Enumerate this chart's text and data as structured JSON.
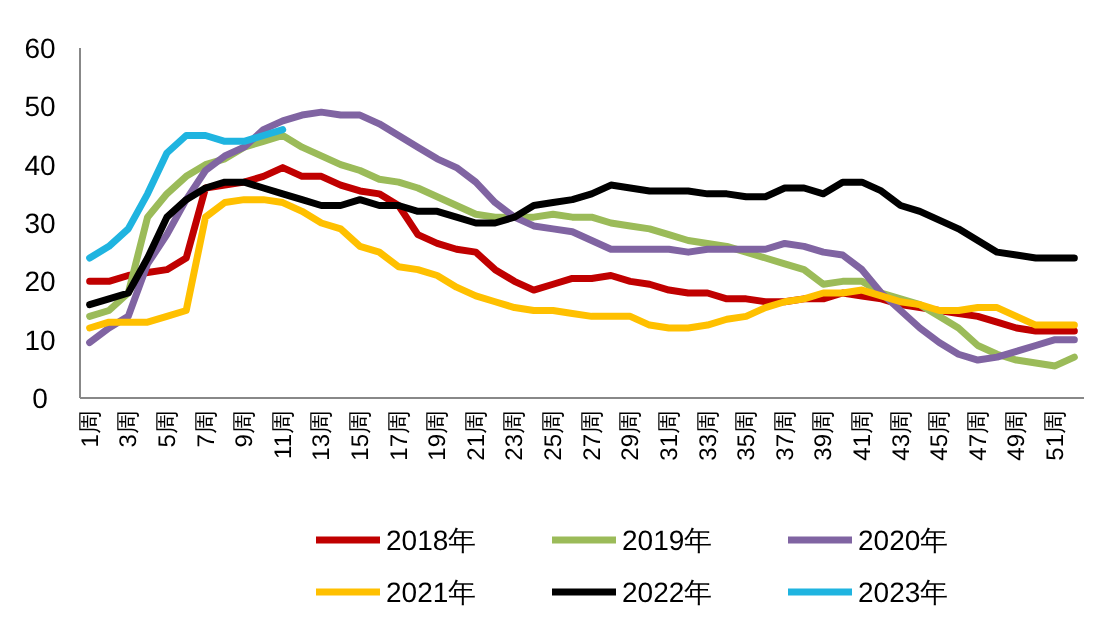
{
  "chart_data": {
    "type": "line",
    "categories": [
      "1周",
      null,
      "3周",
      null,
      "5周",
      null,
      "7周",
      null,
      "9周",
      null,
      "11周",
      null,
      "13周",
      null,
      "15周",
      null,
      "17周",
      null,
      "19周",
      null,
      "21周",
      null,
      "23周",
      null,
      "25周",
      null,
      "27周",
      null,
      "29周",
      null,
      "31周",
      null,
      "33周",
      null,
      "35周",
      null,
      "37周",
      null,
      "39周",
      null,
      "41周",
      null,
      "43周",
      null,
      "45周",
      null,
      "47周",
      null,
      "49周",
      null,
      "51周",
      null
    ],
    "series": [
      {
        "name": "2018年",
        "color": "#c00000",
        "values": [
          20,
          20,
          21,
          21.5,
          22,
          24,
          36,
          36.5,
          37,
          38,
          39.5,
          38,
          38,
          36.5,
          35.5,
          35,
          33,
          28,
          26.5,
          25.5,
          25,
          22,
          20,
          18.5,
          19.5,
          20.5,
          20.5,
          21,
          20,
          19.5,
          18.5,
          18,
          18,
          17,
          17,
          16.5,
          16.5,
          17,
          17,
          18,
          17.5,
          17,
          16,
          15.5,
          15,
          14.5,
          14,
          13,
          12,
          11.5,
          11.5,
          11.5
        ]
      },
      {
        "name": "2019年",
        "color": "#9bbb59",
        "values": [
          14,
          15,
          18,
          31,
          35,
          38,
          40,
          41,
          43,
          44,
          45,
          43,
          41.5,
          40,
          39,
          37.5,
          37,
          36,
          34.5,
          33,
          31.5,
          31,
          31,
          31,
          31.5,
          31,
          31,
          30,
          29.5,
          29,
          28,
          27,
          26.5,
          26,
          25,
          24,
          23,
          22,
          19.5,
          20,
          20,
          18,
          17,
          16,
          14,
          12,
          9,
          7.5,
          6.5,
          6,
          5.5,
          7
        ]
      },
      {
        "name": "2020年",
        "color": "#8064a2",
        "values": [
          9.5,
          12,
          14,
          23,
          28,
          34,
          39,
          41.5,
          43,
          46,
          47.5,
          48.5,
          49,
          48.5,
          48.5,
          47,
          45,
          43,
          41,
          39.5,
          37,
          33.5,
          31,
          29.5,
          29,
          28.5,
          27,
          25.5,
          25.5,
          25.5,
          25.5,
          25,
          25.5,
          25.5,
          25.5,
          25.5,
          26.5,
          26,
          25,
          24.5,
          22,
          18,
          15,
          12,
          9.5,
          7.5,
          6.5,
          7,
          8,
          9,
          10,
          10
        ]
      },
      {
        "name": "2021年",
        "color": "#ffc000",
        "values": [
          12,
          13,
          13,
          13,
          14,
          15,
          31,
          33.5,
          34,
          34,
          33.5,
          32,
          30,
          29,
          26,
          25,
          22.5,
          22,
          21,
          19,
          17.5,
          16.5,
          15.5,
          15,
          15,
          14.5,
          14,
          14,
          14,
          12.5,
          12,
          12,
          12.5,
          13.5,
          14,
          15.5,
          16.5,
          17,
          18,
          18,
          18.5,
          17.5,
          16.5,
          16,
          15,
          15,
          15.5,
          15.5,
          14,
          12.5,
          12.5,
          12.5
        ]
      },
      {
        "name": "2022年",
        "color": "#000000",
        "values": [
          16,
          17,
          18,
          24,
          31,
          34,
          36,
          37,
          37,
          36,
          35,
          34,
          33,
          33,
          34,
          33,
          33,
          32,
          32,
          31,
          30,
          30,
          31,
          33,
          33.5,
          34,
          35,
          36.5,
          36,
          35.5,
          35.5,
          35.5,
          35,
          35,
          34.5,
          34.5,
          36,
          36,
          35,
          37,
          37,
          35.5,
          33,
          32,
          30.5,
          29,
          27,
          25,
          24.5,
          24,
          24,
          24
        ]
      },
      {
        "name": "2023年",
        "color": "#1fb4e0",
        "values": [
          24,
          26,
          29,
          35,
          42,
          45,
          45,
          44,
          44,
          45,
          46,
          null,
          null,
          null,
          null,
          null,
          null,
          null,
          null,
          null,
          null,
          null,
          null,
          null,
          null,
          null,
          null,
          null,
          null,
          null,
          null,
          null,
          null,
          null,
          null,
          null,
          null,
          null,
          null,
          null,
          null,
          null,
          null,
          null,
          null,
          null,
          null,
          null,
          null,
          null,
          null,
          null
        ]
      }
    ],
    "ylim": [
      0,
      60
    ],
    "yticks": [
      0,
      10,
      20,
      30,
      40,
      50,
      60
    ],
    "grid": false,
    "legend": "bottom",
    "marker": "none",
    "line_style": "solid"
  }
}
